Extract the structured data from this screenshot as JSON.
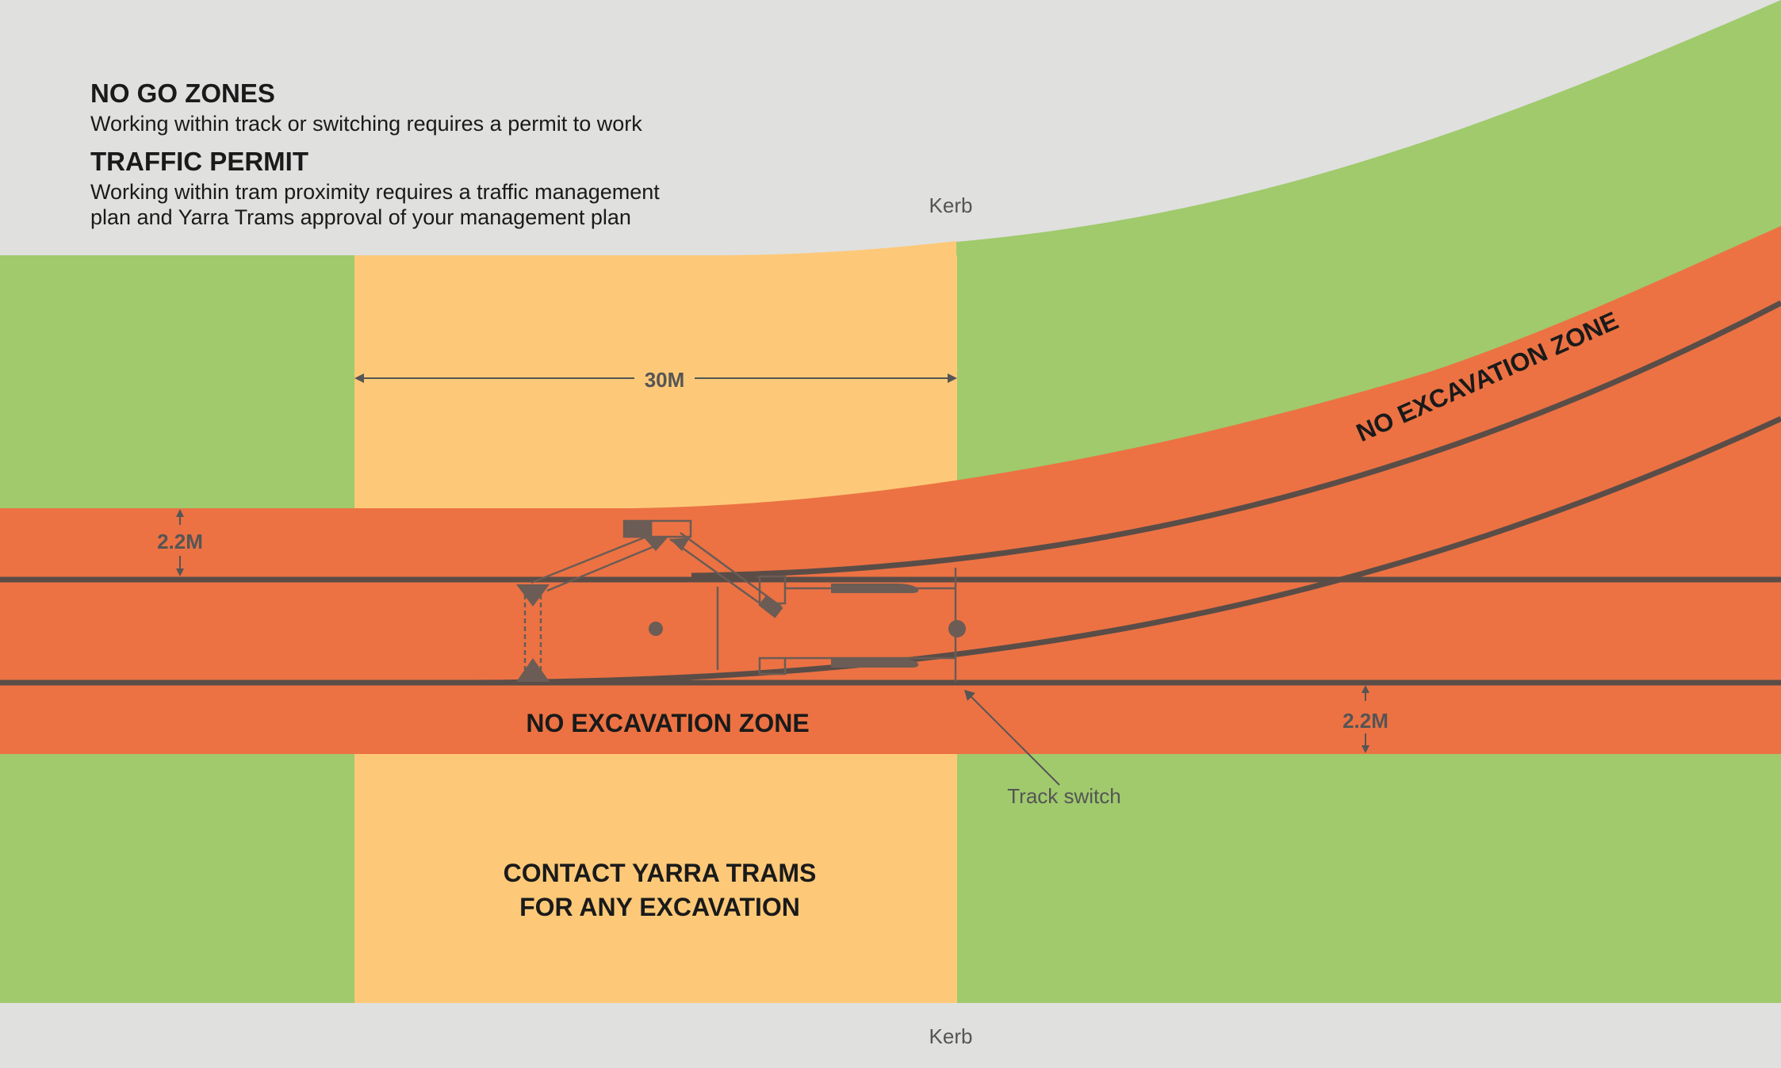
{
  "legend": {
    "no_go_title": "NO GO ZONES",
    "no_go_text": "Working within track or switching requires a permit to work",
    "traffic_title": "TRAFFIC PERMIT",
    "traffic_text_1": "Working within tram proximity requires a traffic management",
    "traffic_text_2": "plan and Yarra Trams approval of your management plan"
  },
  "labels": {
    "kerb_top": "Kerb",
    "kerb_bottom": "Kerb",
    "distance": "30M",
    "offset_top": "2.2M",
    "offset_bottom": "2.2M",
    "no_excavation_main": "NO EXCAVATION ZONE",
    "no_excavation_branch": "NO EXCAVATION ZONE",
    "track_switch": "Track switch",
    "contact_line_1": "CONTACT YARRA TRAMS",
    "contact_line_2": "FOR ANY EXCAVATION"
  },
  "colors": {
    "kerb": "#e0e0df",
    "green_zone": "#a0ca6c",
    "amber_zone": "#fdc978",
    "no_excavation": "#ec7243",
    "track": "#5a4d47",
    "dimension_line": "#555555"
  }
}
